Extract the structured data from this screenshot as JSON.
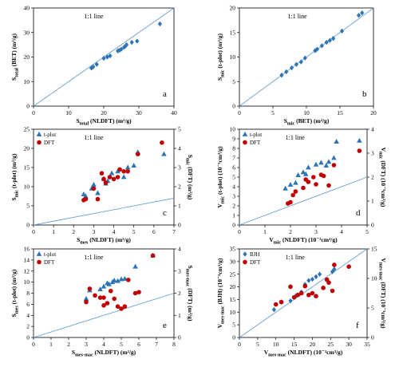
{
  "chart_data": [
    {
      "type": "scatter",
      "panel_letter": "a",
      "annotation": "1:1 line",
      "xlabel": "S_total (NLDFT) (m²/g)",
      "ylabel": "S_total (BET) (m²/g)",
      "xlim": [
        0,
        40
      ],
      "ylim": [
        0,
        40
      ],
      "x_ticks": [
        0,
        10,
        20,
        30,
        40
      ],
      "y_ticks": [
        0,
        10,
        20,
        30,
        40
      ],
      "reference_line": "1:1",
      "series": [
        {
          "color": "#2e75b6",
          "marker": "diamond",
          "points": [
            [
              16.5,
              15.5
            ],
            [
              17.0,
              16.0
            ],
            [
              18.0,
              17.0
            ],
            [
              20.0,
              19.5
            ],
            [
              21.0,
              20.0
            ],
            [
              21.8,
              20.5
            ],
            [
              24.0,
              22.5
            ],
            [
              24.5,
              22.8
            ],
            [
              25.0,
              23.2
            ],
            [
              25.8,
              24.0
            ],
            [
              26.2,
              24.5
            ],
            [
              26.5,
              25.0
            ],
            [
              28.0,
              26.0
            ],
            [
              29.5,
              26.5
            ],
            [
              36.0,
              33.5
            ]
          ]
        }
      ]
    },
    {
      "type": "scatter",
      "panel_letter": "b",
      "annotation": "1:1 line",
      "xlabel": "S_mic (BET) (m²/g)",
      "ylabel": "S_mic (t-plot) (m²/g)",
      "xlim": [
        0,
        20
      ],
      "ylim": [
        0,
        20
      ],
      "x_ticks": [
        0,
        5,
        10,
        15,
        20
      ],
      "y_ticks": [
        0,
        5,
        10,
        15,
        20
      ],
      "reference_line": "1:1",
      "series": [
        {
          "color": "#2e75b6",
          "marker": "diamond",
          "points": [
            [
              6.3,
              6.3
            ],
            [
              7.0,
              7.0
            ],
            [
              7.8,
              7.8
            ],
            [
              8.5,
              8.5
            ],
            [
              9.2,
              9.0
            ],
            [
              9.8,
              9.8
            ],
            [
              11.3,
              11.3
            ],
            [
              11.6,
              11.6
            ],
            [
              12.3,
              12.3
            ],
            [
              13.0,
              13.0
            ],
            [
              13.5,
              13.4
            ],
            [
              14.0,
              13.8
            ],
            [
              15.3,
              15.3
            ],
            [
              17.8,
              18.5
            ],
            [
              18.3,
              19.0
            ]
          ]
        }
      ]
    },
    {
      "type": "scatter",
      "panel_letter": "c",
      "annotation": "1:1 line",
      "xlabel": "S_mes (NLDFT) (m²/g)",
      "ylabel": "S_mic (t-plot) (m²/g)",
      "y2label": "S_mic (DFT) (m²/g)",
      "xlim": [
        0,
        7
      ],
      "ylim": [
        0,
        25
      ],
      "y2lim": [
        0,
        5
      ],
      "x_ticks": [
        0,
        1,
        2,
        3,
        4,
        5,
        6,
        7
      ],
      "y_ticks": [
        0,
        5,
        10,
        15,
        20,
        25
      ],
      "y2_ticks": [
        0,
        1,
        2,
        3,
        4,
        5
      ],
      "reference_line": "1:1",
      "series": [
        {
          "name": "t-plot",
          "axis": "left",
          "color": "#2e75b6",
          "marker": "triangle",
          "points": [
            [
              2.5,
              8.0
            ],
            [
              2.6,
              7.5
            ],
            [
              2.9,
              9.5
            ],
            [
              3.0,
              10.5
            ],
            [
              3.2,
              8.3
            ],
            [
              3.5,
              12.0
            ],
            [
              3.6,
              10.8
            ],
            [
              3.7,
              11.5
            ],
            [
              3.9,
              13.5
            ],
            [
              4.2,
              14.0
            ],
            [
              4.5,
              12.5
            ],
            [
              4.7,
              15.0
            ],
            [
              5.0,
              15.5
            ],
            [
              5.2,
              19.0
            ],
            [
              6.5,
              18.5
            ]
          ]
        },
        {
          "name": "DFT",
          "axis": "right",
          "color": "#c00000",
          "marker": "circle",
          "points": [
            [
              2.5,
              1.3
            ],
            [
              2.6,
              1.35
            ],
            [
              3.0,
              1.9
            ],
            [
              3.2,
              1.35
            ],
            [
              3.4,
              2.7
            ],
            [
              3.5,
              2.4
            ],
            [
              3.6,
              2.2
            ],
            [
              3.8,
              2.5
            ],
            [
              4.0,
              2.4
            ],
            [
              4.2,
              2.5
            ],
            [
              4.3,
              2.9
            ],
            [
              4.5,
              2.8
            ],
            [
              4.7,
              2.8
            ],
            [
              5.2,
              3.7
            ],
            [
              6.4,
              4.3
            ]
          ]
        }
      ]
    },
    {
      "type": "scatter",
      "panel_letter": "d",
      "annotation": "1:1 line",
      "xlabel": "V_mic (NLDFT) (10⁻³cm³/g)",
      "ylabel": "V_mic (t-plot) (10⁻³cm³/g)",
      "y2label": "V_mic (DFT) (10⁻³cm³/g)",
      "xlim": [
        0,
        5
      ],
      "ylim": [
        0,
        10
      ],
      "y2lim": [
        0,
        4
      ],
      "x_ticks": [
        0,
        1,
        2,
        3,
        4,
        5
      ],
      "y_ticks": [
        0,
        1,
        2,
        3,
        4,
        5,
        6,
        7,
        8,
        9,
        10
      ],
      "y2_ticks": [
        0,
        1,
        2,
        3,
        4
      ],
      "reference_line": "1:1",
      "series": [
        {
          "name": "t-plot",
          "axis": "left",
          "color": "#2e75b6",
          "marker": "triangle",
          "points": [
            [
              1.8,
              3.8
            ],
            [
              2.0,
              4.2
            ],
            [
              2.2,
              4.4
            ],
            [
              2.3,
              5.2
            ],
            [
              2.5,
              5.5
            ],
            [
              2.6,
              5.3
            ],
            [
              2.7,
              6.0
            ],
            [
              3.0,
              6.3
            ],
            [
              3.2,
              6.5
            ],
            [
              3.4,
              6.2
            ],
            [
              3.5,
              6.6
            ],
            [
              3.7,
              7.0
            ],
            [
              3.8,
              8.7
            ],
            [
              4.7,
              8.8
            ]
          ]
        },
        {
          "name": "DFT",
          "axis": "right",
          "color": "#c00000",
          "marker": "circle",
          "points": [
            [
              1.9,
              0.9
            ],
            [
              2.0,
              0.95
            ],
            [
              2.1,
              1.25
            ],
            [
              2.2,
              1.4
            ],
            [
              2.5,
              1.55
            ],
            [
              2.6,
              1.9
            ],
            [
              2.7,
              1.8
            ],
            [
              2.9,
              2.0
            ],
            [
              3.0,
              1.7
            ],
            [
              3.2,
              2.1
            ],
            [
              3.3,
              2.05
            ],
            [
              3.5,
              1.65
            ],
            [
              3.7,
              2.5
            ],
            [
              4.7,
              3.1
            ]
          ]
        }
      ]
    },
    {
      "type": "scatter",
      "panel_letter": "e",
      "annotation": "1:1 line",
      "xlabel": "S_mes-mac (NLDFT) (m²/g)",
      "ylabel": "S_mes (t-plot) (m²/g)",
      "y2label": "S_mes-mac (DFT) (m²/g)",
      "xlim": [
        0,
        8
      ],
      "ylim": [
        0,
        16
      ],
      "y2lim": [
        0,
        4
      ],
      "x_ticks": [
        0,
        1,
        2,
        3,
        4,
        5,
        6,
        7,
        8
      ],
      "y_ticks": [
        0,
        2,
        4,
        6,
        8,
        10,
        12,
        14,
        16
      ],
      "y2_ticks": [
        0,
        1,
        2,
        3,
        4
      ],
      "reference_line": "1:1",
      "series": [
        {
          "name": "t-plot",
          "axis": "left",
          "color": "#2e75b6",
          "marker": "triangle",
          "points": [
            [
              3.0,
              7.0
            ],
            [
              3.2,
              8.5
            ],
            [
              3.8,
              8.7
            ],
            [
              4.0,
              9.2
            ],
            [
              4.2,
              9.8
            ],
            [
              4.3,
              9.6
            ],
            [
              4.5,
              10.0
            ],
            [
              4.6,
              10.3
            ],
            [
              4.8,
              10.2
            ],
            [
              5.0,
              10.5
            ],
            [
              5.2,
              10.6
            ],
            [
              5.8,
              12.8
            ],
            [
              6.8,
              14.8
            ]
          ]
        },
        {
          "name": "DFT",
          "axis": "right",
          "color": "#c00000",
          "marker": "circle",
          "points": [
            [
              3.0,
              1.6
            ],
            [
              3.2,
              2.2
            ],
            [
              3.5,
              1.9
            ],
            [
              3.8,
              1.8
            ],
            [
              4.0,
              1.8
            ],
            [
              4.0,
              1.45
            ],
            [
              4.2,
              1.55
            ],
            [
              4.4,
              2.1
            ],
            [
              4.6,
              1.75
            ],
            [
              4.8,
              1.4
            ],
            [
              5.0,
              1.3
            ],
            [
              5.2,
              1.4
            ],
            [
              5.4,
              2.6
            ],
            [
              5.8,
              2.0
            ],
            [
              6.0,
              2.05
            ],
            [
              6.8,
              3.7
            ]
          ]
        }
      ]
    },
    {
      "type": "scatter",
      "panel_letter": "f",
      "annotation": "1:1 line",
      "xlabel": "V_mes-mac (NLDFT) (10⁻³cm³/g)",
      "ylabel": "V_mes-mac (BJH) (10⁻³cm³/g)",
      "y2label": "V_mes-mac (DFT) (10⁻³cm³/g)",
      "xlim": [
        0,
        35
      ],
      "ylim": [
        0,
        35
      ],
      "y2lim": [
        0,
        15
      ],
      "x_ticks": [
        0,
        5,
        10,
        15,
        20,
        25,
        30,
        35
      ],
      "y_ticks": [
        0,
        5,
        10,
        15,
        20,
        25,
        30,
        35
      ],
      "y2_ticks": [
        0,
        5,
        10,
        15
      ],
      "reference_line": "1:1",
      "series": [
        {
          "name": "BJH",
          "axis": "left",
          "color": "#2e75b6",
          "marker": "diamond",
          "points": [
            [
              9.5,
              11.0
            ],
            [
              11.5,
              14.0
            ],
            [
              14.0,
              14.5
            ],
            [
              15.5,
              16.5
            ],
            [
              17.0,
              18.0
            ],
            [
              18.0,
              21.0
            ],
            [
              19.0,
              22.5
            ],
            [
              20.0,
              23.0
            ],
            [
              21.0,
              24.0
            ],
            [
              22.0,
              25.0
            ],
            [
              25.5,
              26.0
            ],
            [
              26.0,
              27.0
            ]
          ]
        },
        {
          "name": "DFT",
          "axis": "right",
          "color": "#c00000",
          "marker": "circle",
          "points": [
            [
              10.0,
              5.6
            ],
            [
              11.5,
              6.0
            ],
            [
              14.0,
              8.6
            ],
            [
              15.0,
              6.8
            ],
            [
              16.0,
              7.2
            ],
            [
              17.0,
              7.5
            ],
            [
              18.0,
              8.7
            ],
            [
              19.0,
              7.2
            ],
            [
              20.0,
              7.5
            ],
            [
              21.0,
              7.0
            ],
            [
              23.0,
              8.4
            ],
            [
              24.0,
              9.8
            ],
            [
              24.5,
              9.3
            ],
            [
              25.5,
              7.9
            ],
            [
              26.0,
              12.3
            ],
            [
              30.0,
              12.0
            ]
          ]
        }
      ]
    }
  ]
}
